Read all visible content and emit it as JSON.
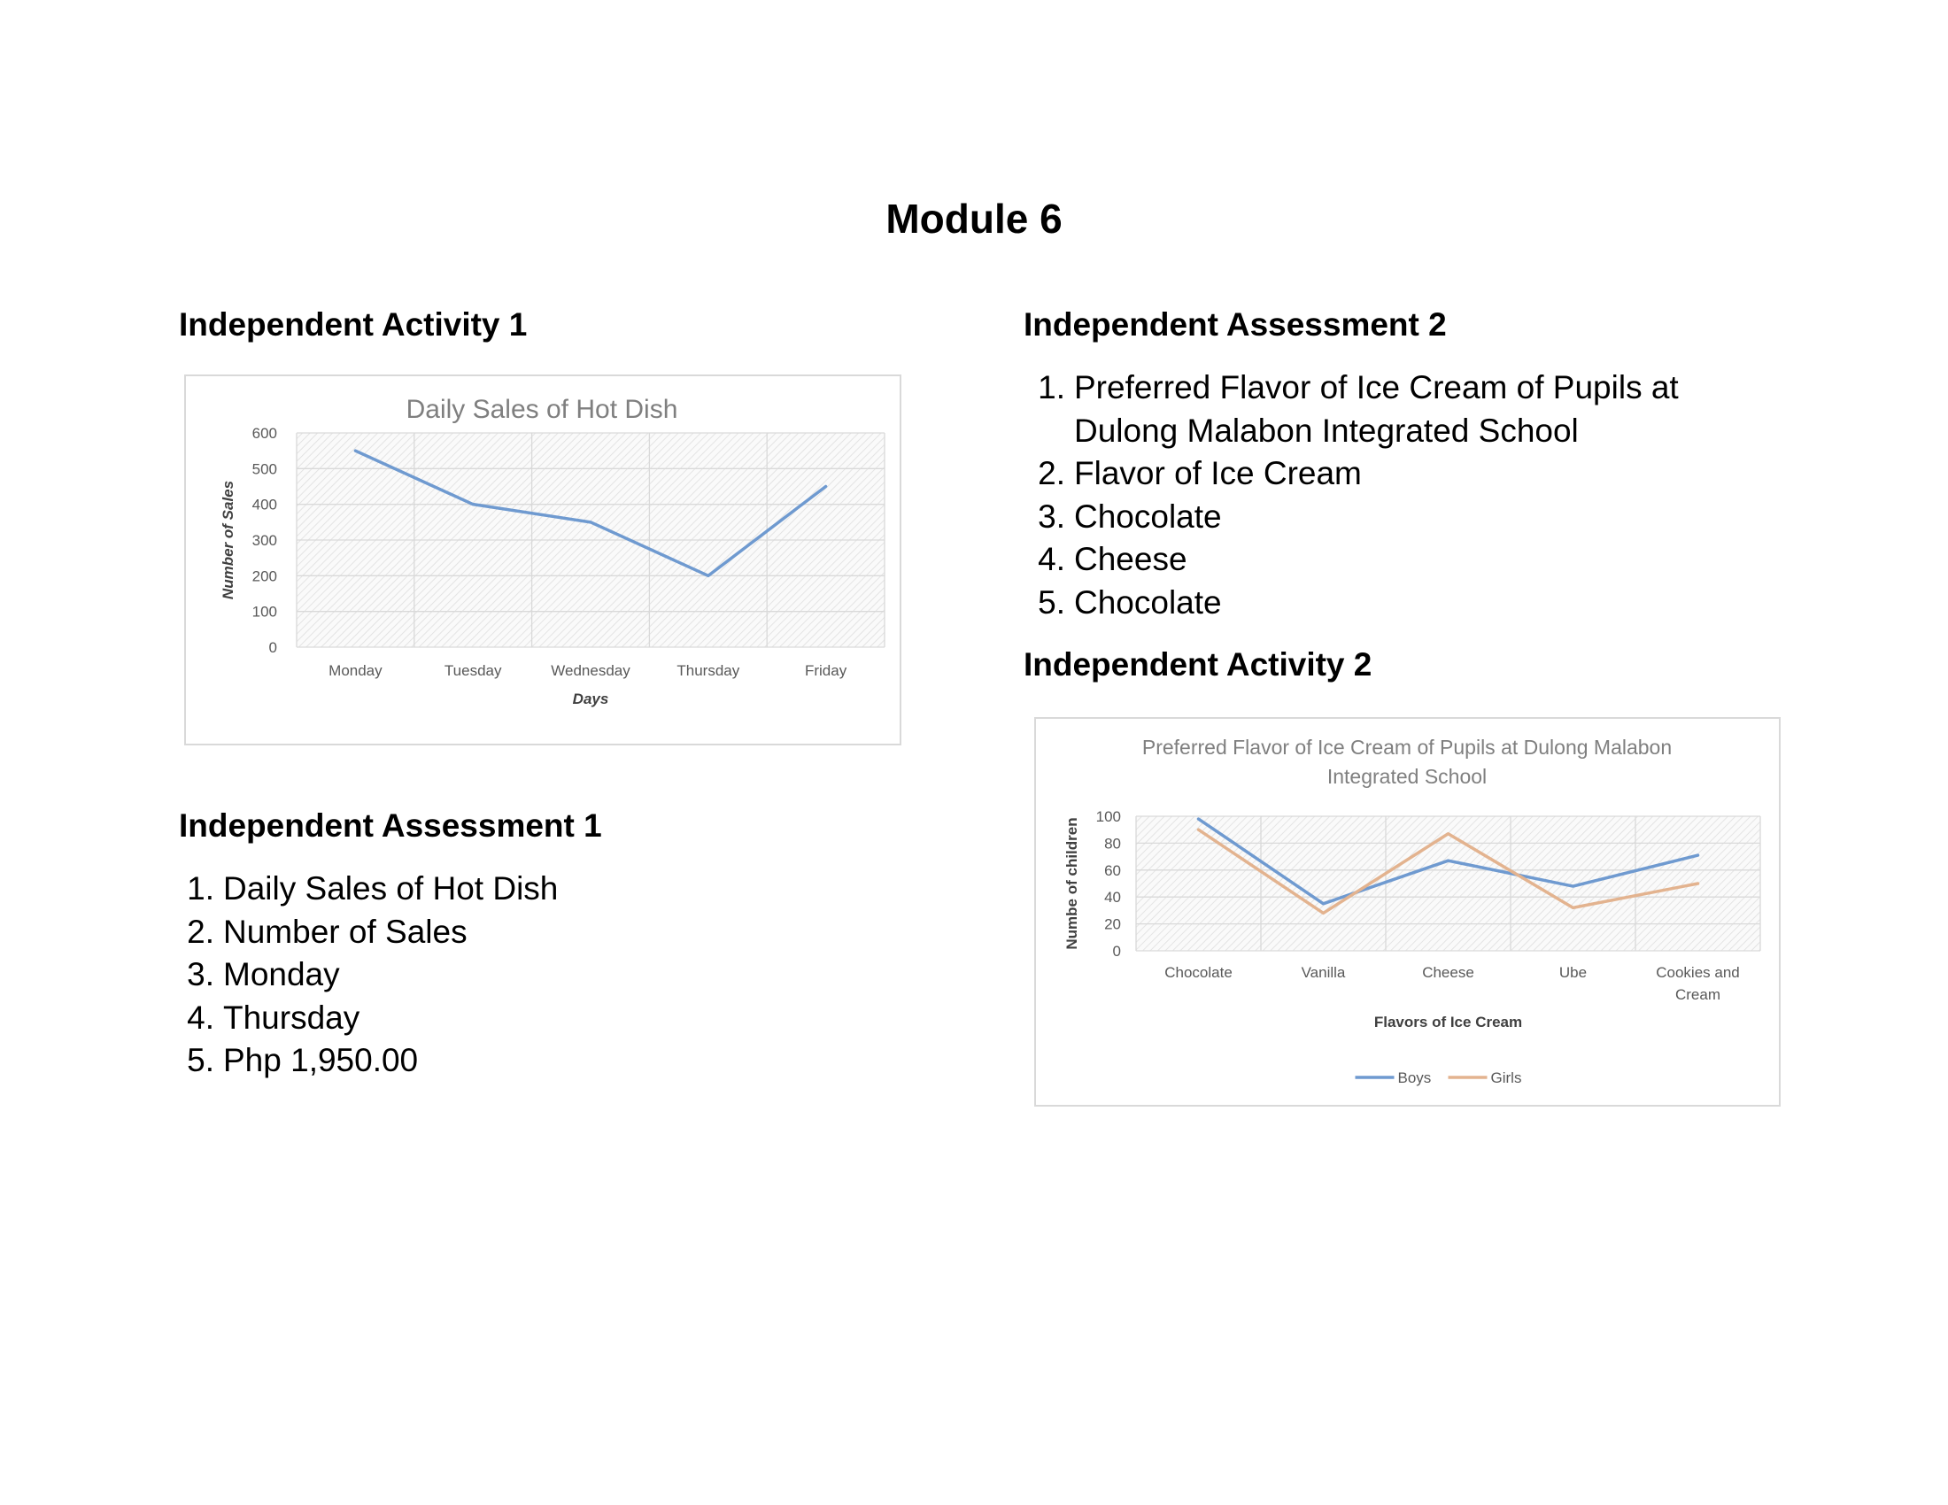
{
  "page": {
    "title": "Module 6"
  },
  "activity1": {
    "heading": "Independent Activity 1"
  },
  "assessment1": {
    "heading": "Independent Assessment 1",
    "items": [
      {
        "num": "1.",
        "text": "Daily Sales of Hot Dish"
      },
      {
        "num": "2.",
        "text": "Number of Sales"
      },
      {
        "num": "3.",
        "text": "Monday"
      },
      {
        "num": "4.",
        "text": "Thursday"
      },
      {
        "num": "5.",
        "text": "Php 1,950.00"
      }
    ]
  },
  "assessment2": {
    "heading": "Independent Assessment 2",
    "items": [
      {
        "num": "1.",
        "lines": [
          "Preferred Flavor of Ice Cream of Pupils at",
          "Dulong Malabon Integrated School"
        ]
      },
      {
        "num": "2.",
        "lines": [
          "Flavor of Ice Cream"
        ]
      },
      {
        "num": "3.",
        "lines": [
          "Chocolate"
        ]
      },
      {
        "num": "4.",
        "lines": [
          "Cheese"
        ]
      },
      {
        "num": "5.",
        "lines": [
          "Chocolate"
        ]
      }
    ]
  },
  "activity2": {
    "heading": "Independent Activity 2"
  },
  "chart_data": [
    {
      "type": "line",
      "title": "Daily Sales of Hot Dish",
      "xlabel": "Days",
      "ylabel": "Number of Sales",
      "categories": [
        "Monday",
        "Tuesday",
        "Wednesday",
        "Thursday",
        "Friday"
      ],
      "series": [
        {
          "values": [
            550,
            400,
            350,
            200,
            450
          ],
          "color": "#6f9ad0"
        }
      ],
      "ylim": [
        0,
        600
      ],
      "yticks": [
        0,
        100,
        200,
        300,
        400,
        500,
        600
      ],
      "grid": true,
      "legend": "none"
    },
    {
      "type": "line",
      "title": [
        "Preferred Flavor of Ice Cream of Pupils at Dulong Malabon",
        "Integrated School"
      ],
      "xlabel": "Flavors of Ice Cream",
      "ylabel": "Numbe of children",
      "categories": [
        [
          "Chocolate"
        ],
        [
          "Vanilla"
        ],
        [
          "Cheese"
        ],
        [
          "Ube"
        ],
        [
          "Cookies and",
          "Cream"
        ]
      ],
      "series": [
        {
          "name": "Boys",
          "values": [
            98,
            35,
            67,
            48,
            71
          ],
          "color": "#6f9ad0"
        },
        {
          "name": "Girls",
          "values": [
            90,
            28,
            87,
            32,
            50
          ],
          "color": "#e3b38f"
        }
      ],
      "ylim": [
        0,
        100
      ],
      "yticks": [
        0,
        20,
        40,
        60,
        80,
        100
      ],
      "grid": true,
      "legend": "bottom"
    }
  ]
}
